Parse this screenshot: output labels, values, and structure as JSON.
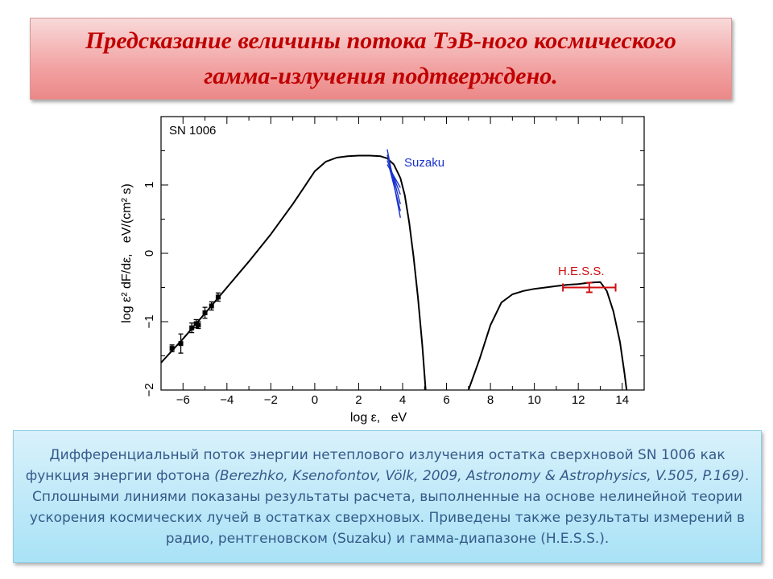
{
  "slide": {
    "title": "Предсказание величины потока ТэВ-ного космического гамма-излучения подтверждено.",
    "caption": {
      "part1": "Дифференциальный поток энергии нетеплового излучения остатка сверхновой SN 1006  как функция энергии фотона ",
      "citation": "(Berezhko, Ksenofontov, Völk, 2009, Astronomy & Astrophysics, V.505, P.169)",
      "part2": ". Сплошными линиями показаны результаты расчета, выполненные на основе нелинейной теории ускорения космических лучей в остатках сверхновых. Приведены также результаты измерений в радио, рентгеновском (Suzaku) и гамма-диапазоне (H.E.S.S.)."
    }
  },
  "chart_data": {
    "type": "line",
    "title": "SN 1006",
    "xlabel": "log ε,   eV",
    "ylabel": "log ε² dF/dε,   eV/(cm² s)",
    "xlim": [
      -7,
      15
    ],
    "ylim": [
      -2,
      2
    ],
    "x_ticks": [
      -6,
      -4,
      -2,
      0,
      2,
      4,
      6,
      8,
      10,
      12,
      14
    ],
    "y_ticks": [
      -2,
      -1,
      0,
      1
    ],
    "colors": {
      "model": "#000000",
      "suzaku": "#1a33cc",
      "hess": "#d01010",
      "hess_label": "#d01010",
      "suzaku_label": "#1a33cc"
    },
    "series": [
      {
        "kind": "model-synchrotron",
        "x": [
          -7,
          -6,
          -5,
          -4,
          -3,
          -2,
          -1,
          -0.5,
          0,
          0.5,
          1,
          1.5,
          2,
          2.5,
          3,
          3.3,
          3.6,
          3.9,
          4.1,
          4.3,
          4.5,
          4.7,
          4.9,
          5.05
        ],
        "y": [
          -1.6,
          -1.25,
          -0.88,
          -0.5,
          -0.12,
          0.28,
          0.72,
          0.96,
          1.2,
          1.34,
          1.4,
          1.42,
          1.43,
          1.43,
          1.42,
          1.39,
          1.3,
          1.1,
          0.85,
          0.45,
          -0.05,
          -0.65,
          -1.35,
          -2.0
        ]
      },
      {
        "kind": "model-inverse-compton",
        "x": [
          7.0,
          7.5,
          8.0,
          8.5,
          9.0,
          9.5,
          10.0,
          10.5,
          11.0,
          11.5,
          12.0,
          12.5,
          13.0,
          13.3,
          13.6,
          13.9,
          14.1,
          14.2
        ],
        "y": [
          -2.0,
          -1.55,
          -1.05,
          -0.72,
          -0.6,
          -0.55,
          -0.52,
          -0.5,
          -0.48,
          -0.46,
          -0.45,
          -0.43,
          -0.42,
          -0.55,
          -0.85,
          -1.3,
          -1.75,
          -2.0
        ]
      }
    ],
    "radio_points": {
      "x": [
        -6.5,
        -6.1,
        -5.6,
        -5.4,
        -5.3,
        -5.0,
        -4.7,
        -4.4
      ],
      "y": [
        -1.39,
        -1.32,
        -1.09,
        -1.03,
        -1.05,
        -0.87,
        -0.77,
        -0.64
      ],
      "yerr": [
        0.05,
        0.14,
        0.07,
        0.06,
        0.05,
        0.08,
        0.06,
        0.06
      ]
    },
    "annotations": [
      {
        "text": "SN 1006",
        "color": "#000000"
      },
      {
        "text": "Suzaku",
        "color": "#1a33cc"
      },
      {
        "text": "H.E.S.S.",
        "color": "#d01010"
      }
    ],
    "suzaku": {
      "x_range": [
        3.3,
        3.9
      ],
      "y_range": [
        0.5,
        1.5
      ]
    },
    "hess": {
      "x": 12.5,
      "y": -0.5,
      "x_range": [
        11.3,
        13.7
      ],
      "yerr": 0.07
    }
  }
}
